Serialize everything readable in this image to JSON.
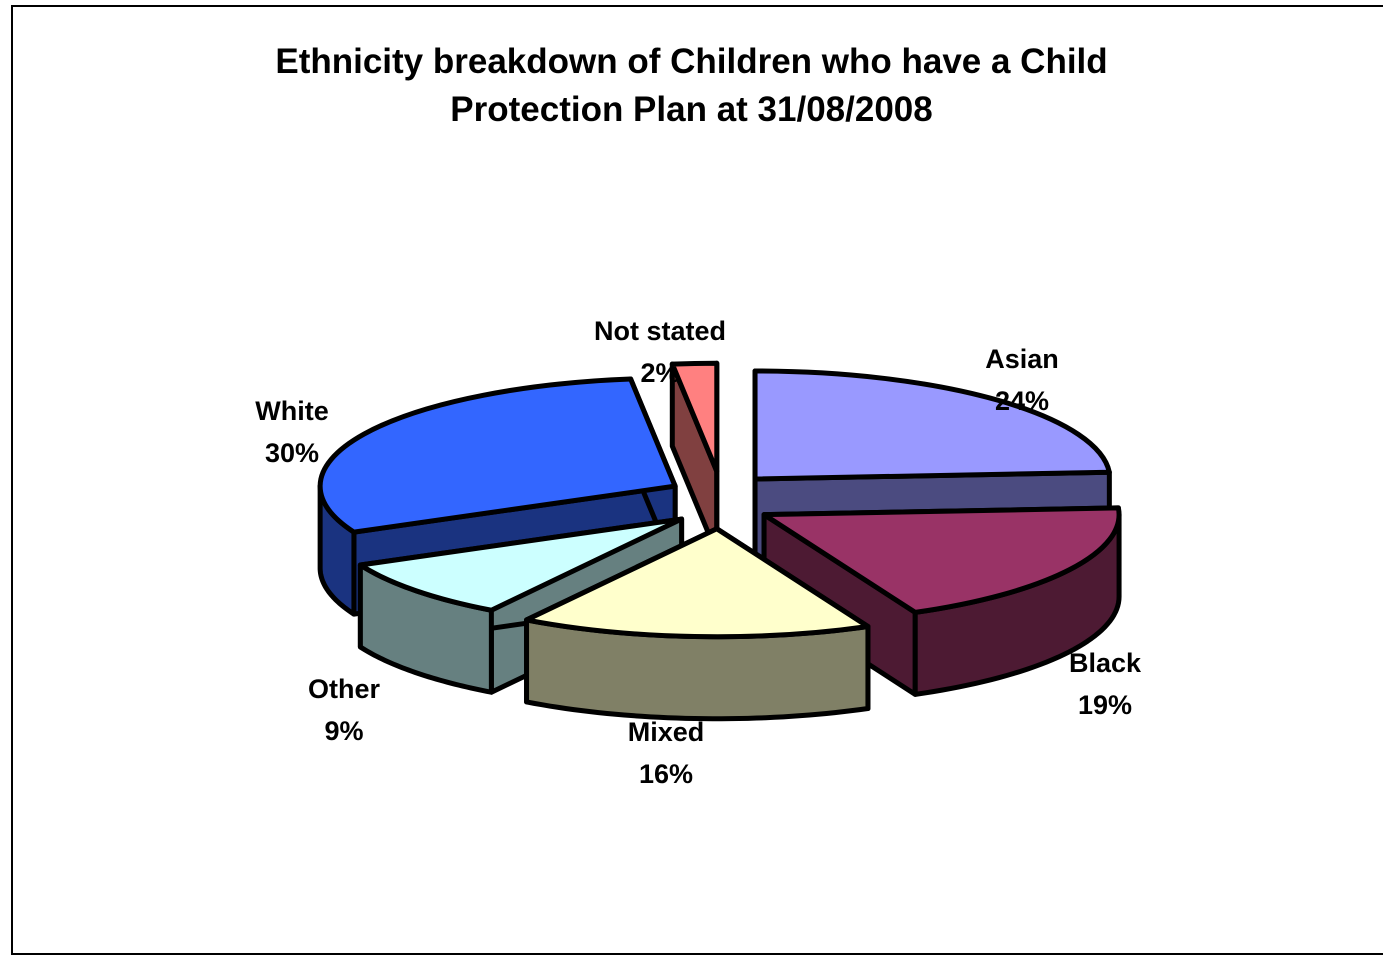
{
  "chart_data": {
    "type": "pie",
    "style": "3d-exploded",
    "title_lines": [
      "Ethnicity breakdown of Children who have a Child",
      "Protection Plan at 31/08/2008"
    ],
    "slices": [
      {
        "name": "Asian",
        "percent_label": "24%",
        "value": 24,
        "top_color": "#9999ff",
        "side_color": "#4b4b80"
      },
      {
        "name": "Black",
        "percent_label": "19%",
        "value": 19,
        "top_color": "#993366",
        "side_color": "#4d1a33"
      },
      {
        "name": "Mixed",
        "percent_label": "16%",
        "value": 16,
        "top_color": "#ffffcc",
        "side_color": "#808066"
      },
      {
        "name": "Other",
        "percent_label": "9%",
        "value": 9,
        "top_color": "#ccffff",
        "side_color": "#668080"
      },
      {
        "name": "White",
        "percent_label": "30%",
        "value": 30,
        "top_color": "#3366ff",
        "side_color": "#1a3380"
      },
      {
        "name": "Not stated",
        "percent_label": "2%",
        "value": 2,
        "top_color": "#ff8080",
        "side_color": "#804040"
      }
    ]
  }
}
